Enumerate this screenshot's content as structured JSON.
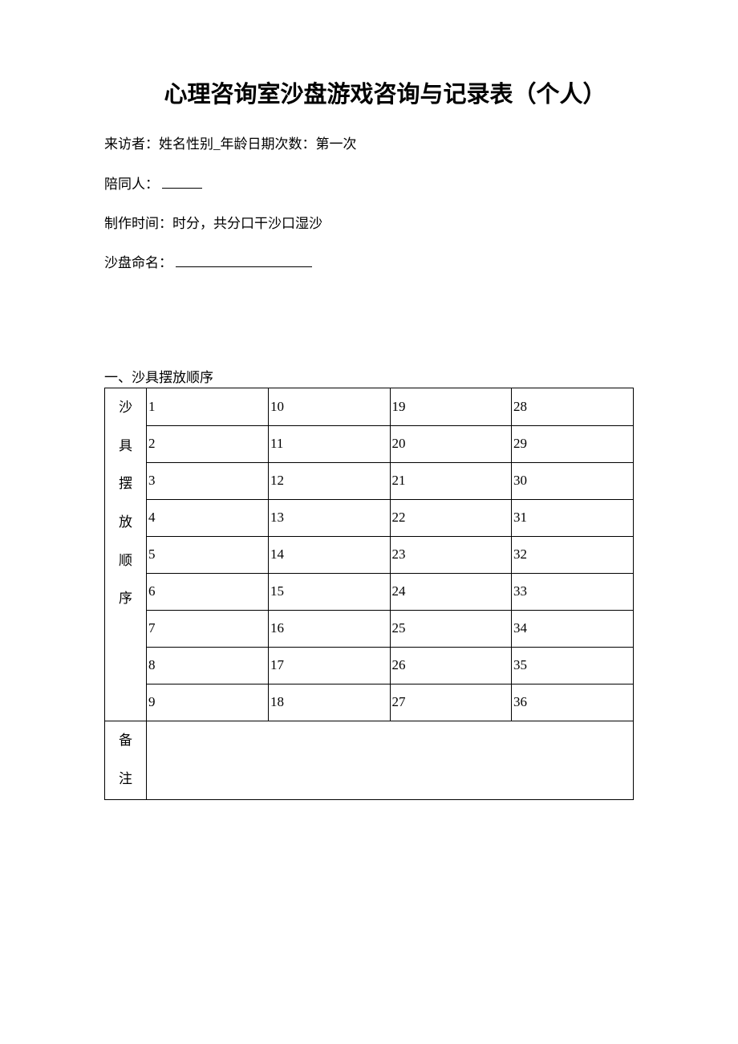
{
  "title": "心理咨询室沙盘游戏咨询与记录表（个人）",
  "info": {
    "visitor_line": "来访者：姓名性别_年龄日期次数：第一次",
    "companion_label": "陪同人：",
    "production_time_line": "制作时间：时分，共分口干沙口湿沙",
    "sandtray_name_label": "沙盘命名："
  },
  "section1": {
    "heading": "一、沙具摆放顺序",
    "vertical_header_chars": [
      "沙",
      "具",
      "摆",
      "放",
      "顺",
      "序"
    ],
    "notes_header_chars": [
      "备",
      "注"
    ],
    "table": {
      "columns": 4,
      "rows": 9,
      "cells": [
        [
          "1",
          "10",
          "19",
          "28"
        ],
        [
          "2",
          "11",
          "20",
          "29"
        ],
        [
          "3",
          "12",
          "21",
          "30"
        ],
        [
          "4",
          "13",
          "22",
          "31"
        ],
        [
          "5",
          "14",
          "23",
          "32"
        ],
        [
          "6",
          "15",
          "24",
          "33"
        ],
        [
          "7",
          "16",
          "25",
          "34"
        ],
        [
          "8",
          "17",
          "26",
          "35"
        ],
        [
          "9",
          "18",
          "27",
          "36"
        ]
      ]
    }
  },
  "style": {
    "background_color": "#ffffff",
    "text_color": "#000000",
    "border_color": "#000000",
    "title_fontsize": 29,
    "body_fontsize": 17
  }
}
